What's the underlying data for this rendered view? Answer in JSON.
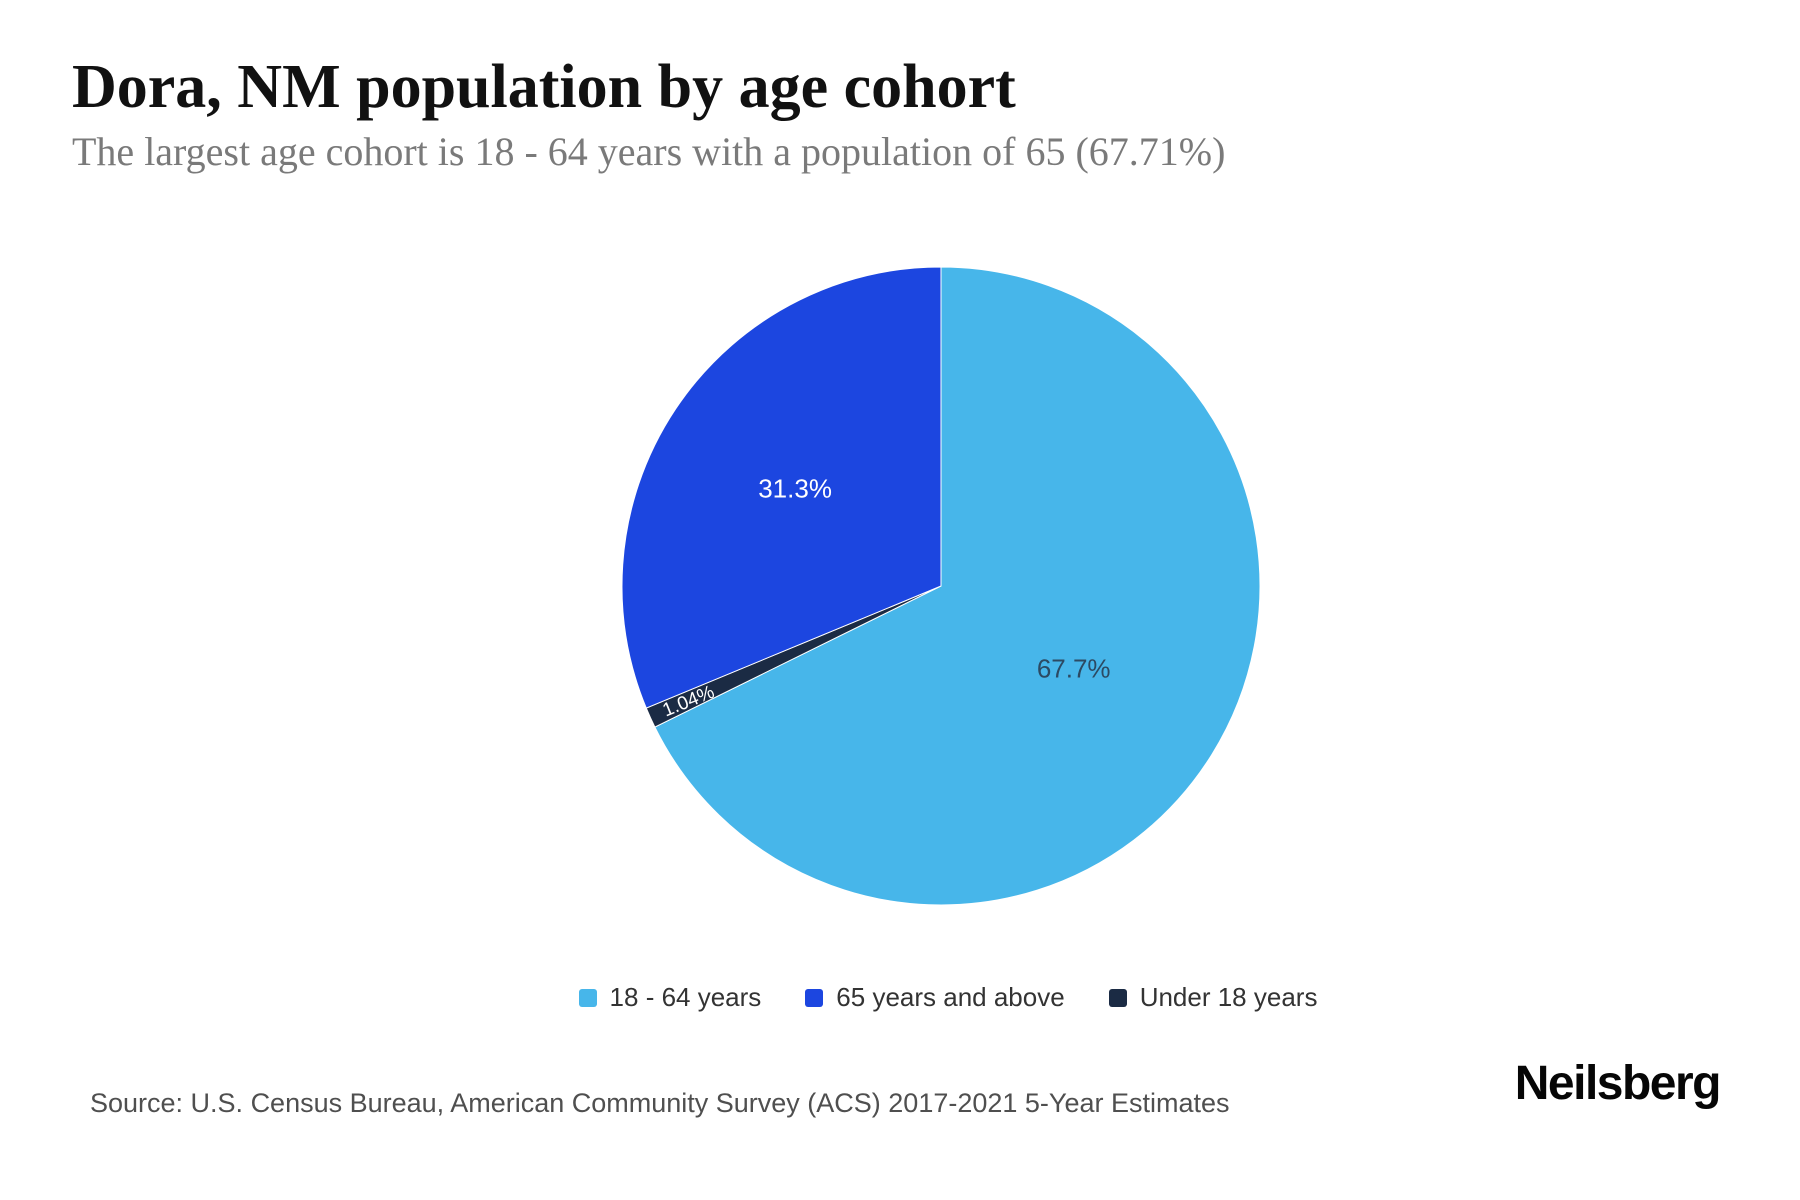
{
  "header": {
    "title": "Dora, NM population by age cohort",
    "subtitle": "The largest age cohort is 18 - 64 years with a population of 65 (67.71%)"
  },
  "chart_data": {
    "type": "pie",
    "title": "Dora, NM population by age cohort",
    "start_angle_deg": 0,
    "legend_position": "bottom",
    "slices": [
      {
        "name": "18 - 64 years",
        "value": 67.71,
        "percent_label": "67.7%",
        "color": "#47b6ea",
        "label_color": "#2c4a63",
        "label_radius": 0.49,
        "label_rotation": 0,
        "label_font_size": 26
      },
      {
        "name": "Under 18 years",
        "value": 1.04,
        "percent_label": "1.04%",
        "color": "#1b2b44",
        "label_color": "#ffffff",
        "label_radius": 0.87,
        "label_rotation": -22,
        "label_font_size": 19
      },
      {
        "name": "65 years and above",
        "value": 31.25,
        "percent_label": "31.3%",
        "color": "#1c46e0",
        "label_color": "#ffffff",
        "label_radius": 0.55,
        "label_rotation": 0,
        "label_font_size": 26
      }
    ]
  },
  "legend": {
    "items": [
      {
        "label": "18 - 64 years",
        "color": "#47b6ea"
      },
      {
        "label": "65 years and above",
        "color": "#1c46e0"
      },
      {
        "label": "Under 18 years",
        "color": "#1b2b44"
      }
    ]
  },
  "footer": {
    "source": "Source: U.S. Census Bureau, American Community Survey (ACS) 2017-2021 5-Year Estimates",
    "brand": "Neilsberg"
  }
}
